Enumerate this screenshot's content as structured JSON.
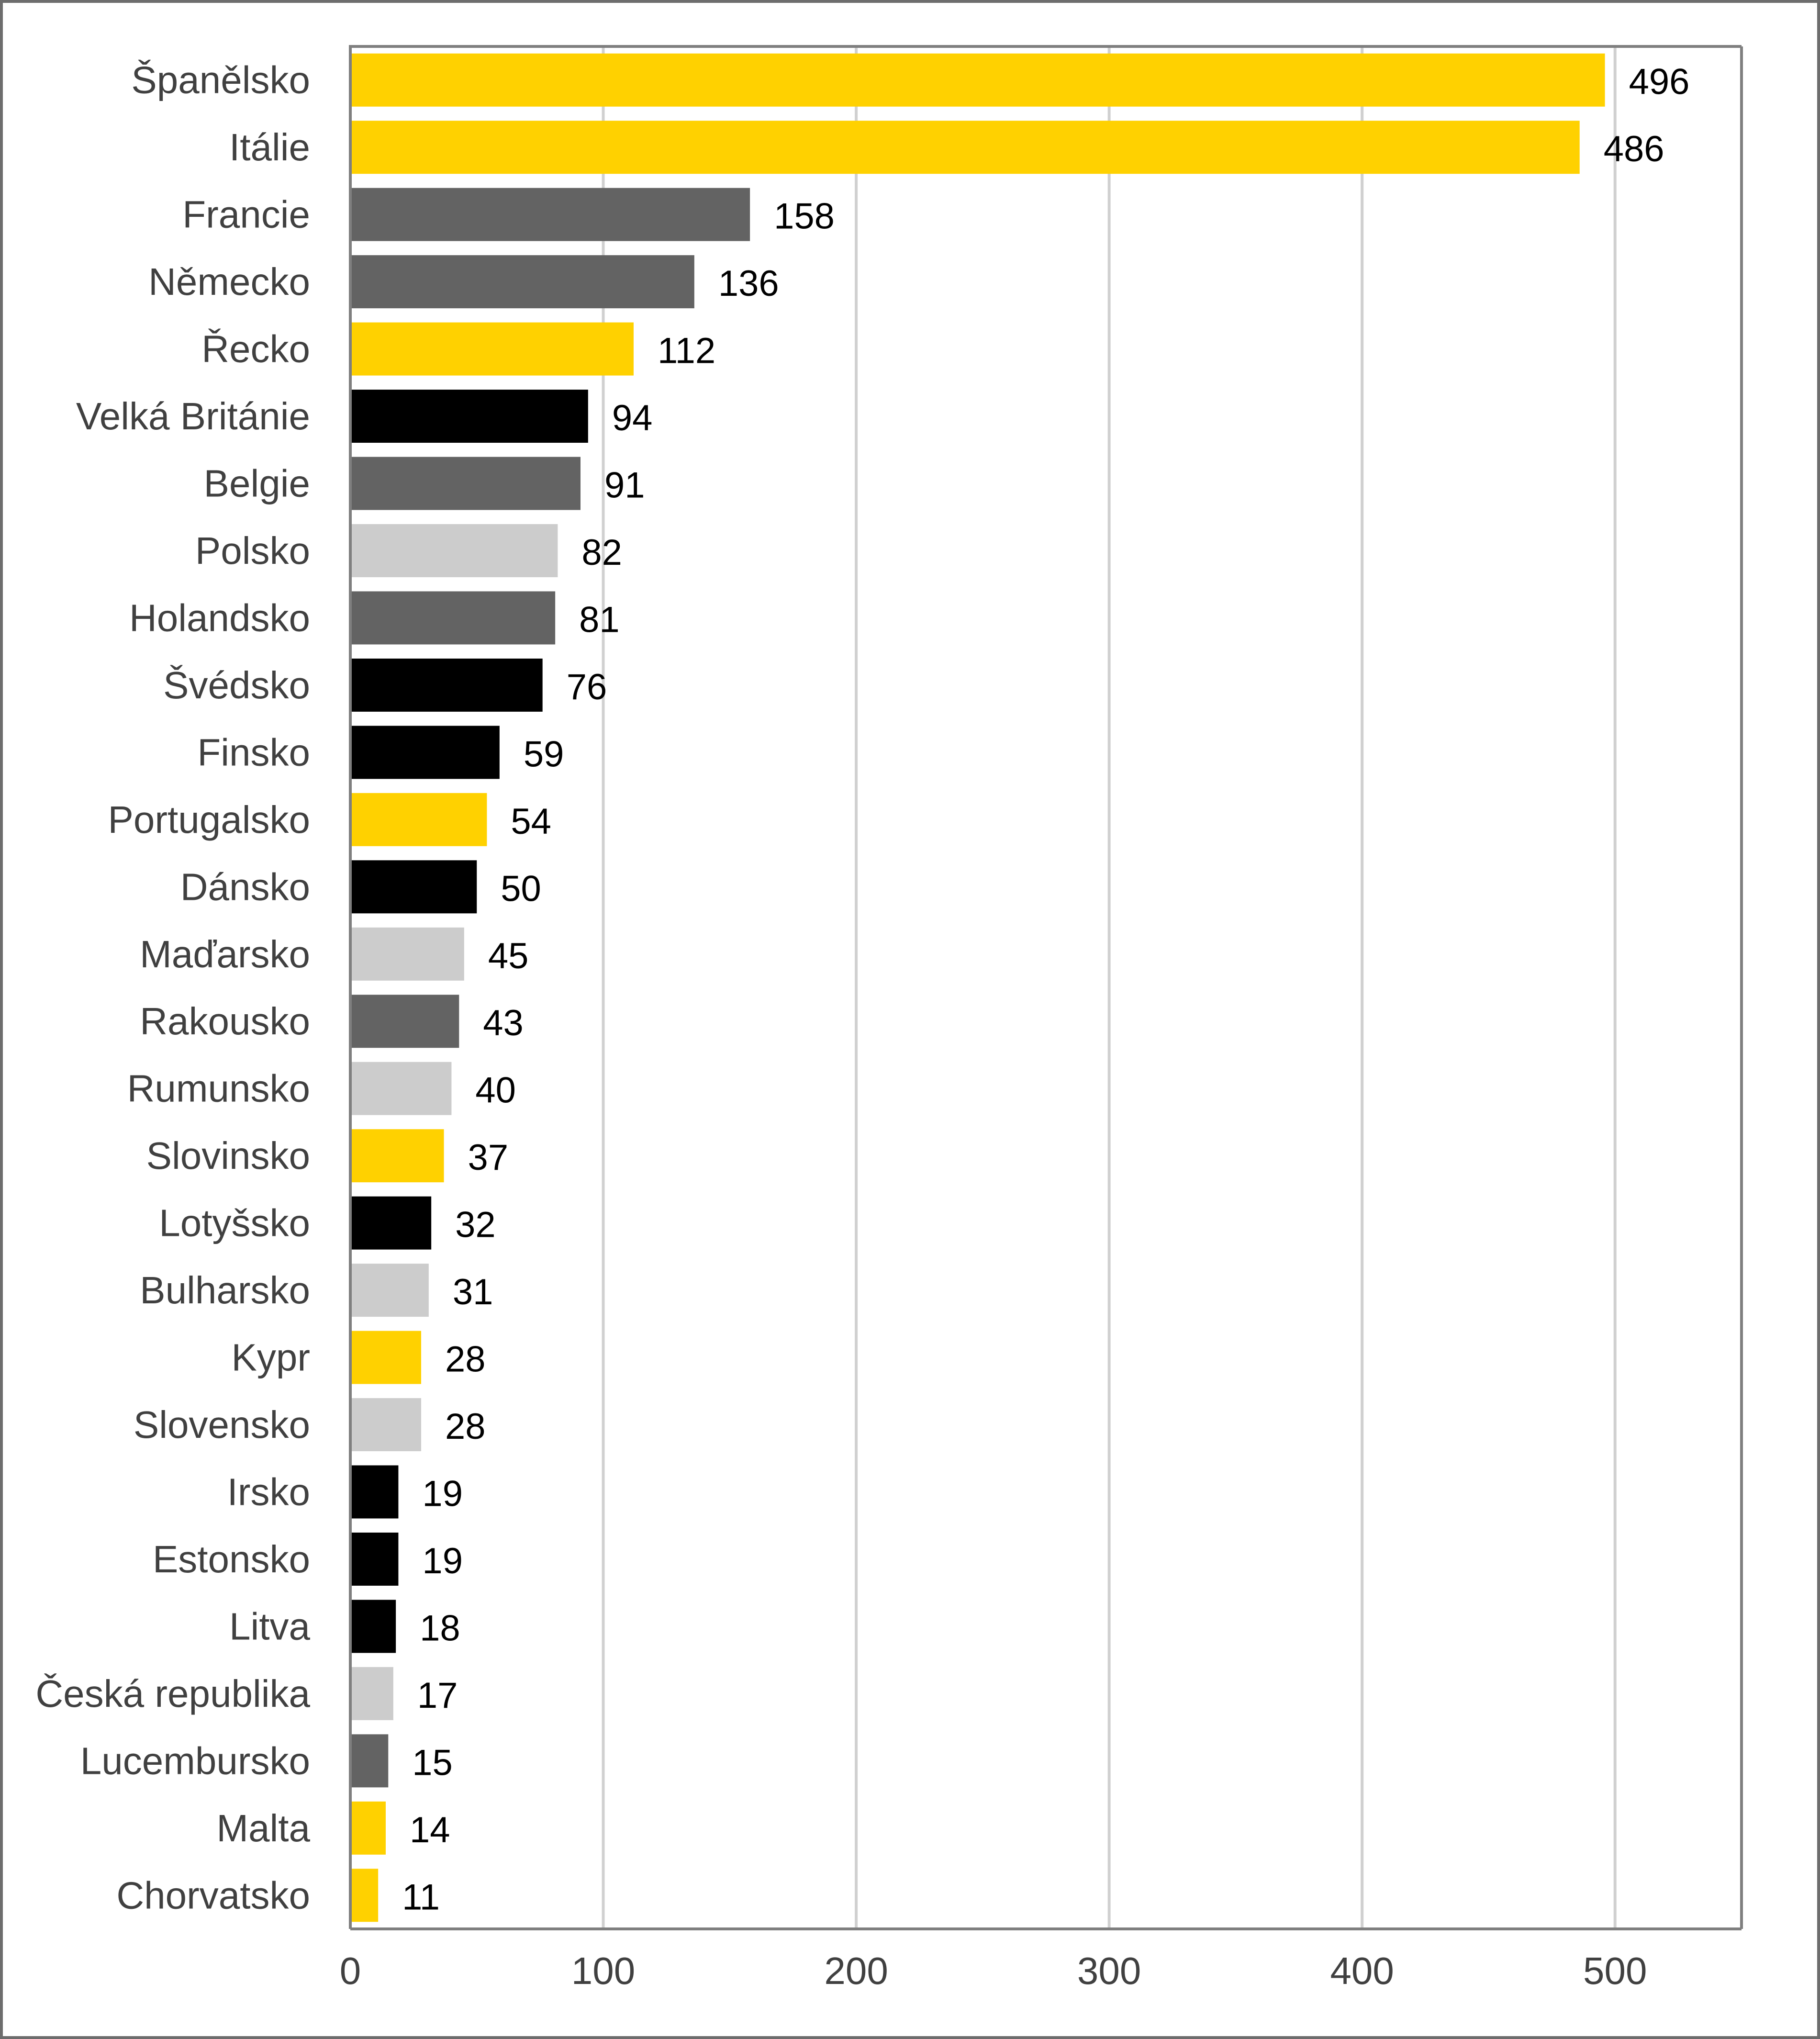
{
  "chart_data": {
    "type": "bar",
    "orientation": "horizontal",
    "title": "",
    "xlabel": "",
    "ylabel": "",
    "xlim": [
      0,
      550
    ],
    "xticks": [
      0,
      100,
      200,
      300,
      400,
      500
    ],
    "grid": true,
    "legend": "none",
    "colors": {
      "yellow": "#FFD100",
      "dark_gray": "#636363",
      "black": "#000000",
      "light_gray": "#CCCCCC",
      "grid": "#D0D0D0",
      "axis": "#7F7F7F"
    },
    "bars": [
      {
        "category": "Španělsko",
        "value": 496,
        "color": "yellow"
      },
      {
        "category": "Itálie",
        "value": 486,
        "color": "yellow"
      },
      {
        "category": "Francie",
        "value": 158,
        "color": "dark_gray"
      },
      {
        "category": "Německo",
        "value": 136,
        "color": "dark_gray"
      },
      {
        "category": "Řecko",
        "value": 112,
        "color": "yellow"
      },
      {
        "category": "Velká Británie",
        "value": 94,
        "color": "black"
      },
      {
        "category": "Belgie",
        "value": 91,
        "color": "dark_gray"
      },
      {
        "category": "Polsko",
        "value": 82,
        "color": "light_gray"
      },
      {
        "category": "Holandsko",
        "value": 81,
        "color": "dark_gray"
      },
      {
        "category": "Švédsko",
        "value": 76,
        "color": "black"
      },
      {
        "category": "Finsko",
        "value": 59,
        "color": "black"
      },
      {
        "category": "Portugalsko",
        "value": 54,
        "color": "yellow"
      },
      {
        "category": "Dánsko",
        "value": 50,
        "color": "black"
      },
      {
        "category": "Maďarsko",
        "value": 45,
        "color": "light_gray"
      },
      {
        "category": "Rakousko",
        "value": 43,
        "color": "dark_gray"
      },
      {
        "category": "Rumunsko",
        "value": 40,
        "color": "light_gray"
      },
      {
        "category": "Slovinsko",
        "value": 37,
        "color": "yellow"
      },
      {
        "category": "Lotyšsko",
        "value": 32,
        "color": "black"
      },
      {
        "category": "Bulharsko",
        "value": 31,
        "color": "light_gray"
      },
      {
        "category": "Kypr",
        "value": 28,
        "color": "yellow"
      },
      {
        "category": "Slovensko",
        "value": 28,
        "color": "light_gray"
      },
      {
        "category": "Irsko",
        "value": 19,
        "color": "black"
      },
      {
        "category": "Estonsko",
        "value": 19,
        "color": "black"
      },
      {
        "category": "Litva",
        "value": 18,
        "color": "black"
      },
      {
        "category": "Česká republika",
        "value": 17,
        "color": "light_gray"
      },
      {
        "category": "Lucembursko",
        "value": 15,
        "color": "dark_gray"
      },
      {
        "category": "Malta",
        "value": 14,
        "color": "yellow"
      },
      {
        "category": "Chorvatsko",
        "value": 11,
        "color": "yellow"
      }
    ]
  }
}
